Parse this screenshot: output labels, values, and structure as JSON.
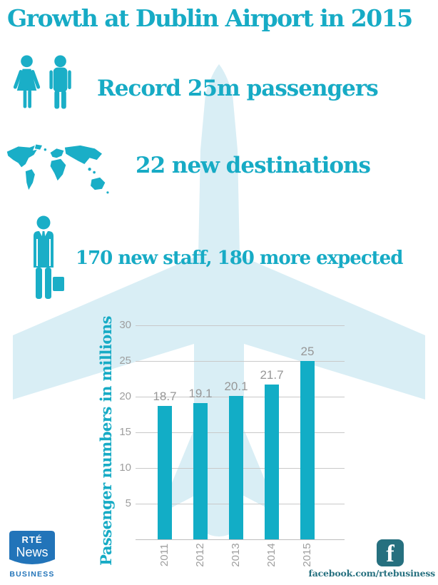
{
  "title": "Growth at Dublin Airport in 2015",
  "stats": [
    {
      "icon": "couple-icon",
      "text": "Record 25m passengers"
    },
    {
      "icon": "world-map-icon",
      "text": "22 new destinations"
    },
    {
      "icon": "businessman-icon",
      "text": "170 new staff, 180 more expected"
    }
  ],
  "chart_data": {
    "type": "bar",
    "categories": [
      "2011",
      "2012",
      "2013",
      "2014",
      "2015"
    ],
    "values": [
      18.7,
      19.1,
      20.1,
      21.7,
      25
    ],
    "title": "",
    "xlabel": "",
    "ylabel": "Passenger numbers in millions",
    "yticks": [
      30,
      25,
      20,
      15,
      10,
      5
    ],
    "ylim": [
      0,
      30
    ],
    "grid": true,
    "legend": "none",
    "bar_color": "#12adc6",
    "value_label_color": "#979797",
    "tick_label_color": "#9e9e9e"
  },
  "footer": {
    "logo_line1": "RTÉ",
    "logo_line2": "News",
    "logo_line3": "BUSINESS",
    "facebook_glyph": "f",
    "facebook_url": "facebook.com/rtebusiness"
  },
  "colors": {
    "accent_teal": "#17abc5",
    "plane_light_blue": "#d9eef5",
    "grid_gray": "#c9c9c9",
    "label_gray": "#9e9e9e",
    "rte_blue": "#2274b9",
    "footer_dark_teal": "#26707f"
  }
}
